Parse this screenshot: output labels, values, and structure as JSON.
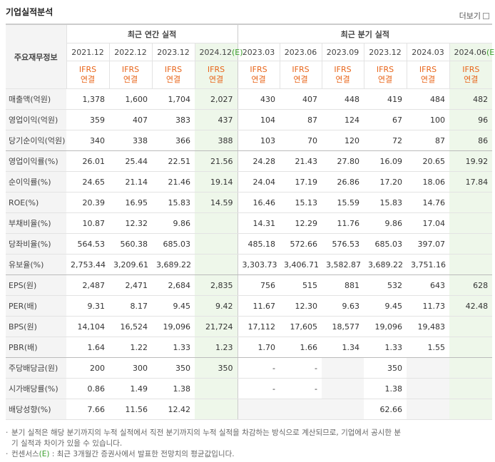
{
  "header": {
    "title": "기업실적분석",
    "more": "더보기"
  },
  "table": {
    "corner": "주요재무정보",
    "annual_group": "최근 연간 실적",
    "quarter_group": "최근 분기 실적",
    "estimate_mark": "(E)",
    "periods": [
      {
        "date": "2021.12",
        "estimate": false,
        "standard": "IFRS",
        "scope": "연결"
      },
      {
        "date": "2022.12",
        "estimate": false,
        "standard": "IFRS",
        "scope": "연결"
      },
      {
        "date": "2023.12",
        "estimate": false,
        "standard": "IFRS",
        "scope": "연결"
      },
      {
        "date": "2024.12",
        "estimate": true,
        "standard": "IFRS",
        "scope": "연결"
      },
      {
        "date": "2023.03",
        "estimate": false,
        "standard": "IFRS",
        "scope": "연결"
      },
      {
        "date": "2023.06",
        "estimate": false,
        "standard": "IFRS",
        "scope": "연결"
      },
      {
        "date": "2023.09",
        "estimate": false,
        "standard": "IFRS",
        "scope": "연결"
      },
      {
        "date": "2023.12",
        "estimate": false,
        "standard": "IFRS",
        "scope": "연결"
      },
      {
        "date": "2024.03",
        "estimate": false,
        "standard": "IFRS",
        "scope": "연결"
      },
      {
        "date": "2024.06",
        "estimate": true,
        "standard": "IFRS",
        "scope": "연결"
      }
    ],
    "rows": [
      {
        "label": "매출액(억원)",
        "values": [
          "1,378",
          "1,600",
          "1,704",
          "2,027",
          "430",
          "407",
          "448",
          "419",
          "484",
          "482"
        ]
      },
      {
        "label": "영업이익(억원)",
        "values": [
          "359",
          "407",
          "383",
          "437",
          "104",
          "87",
          "124",
          "67",
          "100",
          "96"
        ]
      },
      {
        "label": "당기순이익(억원)",
        "values": [
          "340",
          "338",
          "366",
          "388",
          "103",
          "70",
          "120",
          "72",
          "87",
          "86"
        ]
      },
      {
        "label": "영업이익률(%)",
        "values": [
          "26.01",
          "25.44",
          "22.51",
          "21.56",
          "24.28",
          "21.43",
          "27.80",
          "16.09",
          "20.65",
          "19.92"
        ]
      },
      {
        "label": "순이익률(%)",
        "values": [
          "24.65",
          "21.14",
          "21.46",
          "19.14",
          "24.04",
          "17.19",
          "26.86",
          "17.20",
          "18.06",
          "17.84"
        ]
      },
      {
        "label": "ROE(%)",
        "values": [
          "20.39",
          "16.95",
          "15.83",
          "14.59",
          "16.46",
          "15.13",
          "15.59",
          "15.83",
          "14.76",
          null
        ]
      },
      {
        "label": "부채비율(%)",
        "values": [
          "10.87",
          "12.32",
          "9.86",
          null,
          "14.31",
          "12.29",
          "11.76",
          "9.86",
          "17.04",
          null
        ]
      },
      {
        "label": "당좌비율(%)",
        "values": [
          "564.53",
          "560.38",
          "685.03",
          null,
          "485.18",
          "572.66",
          "576.53",
          "685.03",
          "397.07",
          null
        ]
      },
      {
        "label": "유보율(%)",
        "values": [
          "2,753.44",
          "3,209.61",
          "3,689.22",
          null,
          "3,303.73",
          "3,406.71",
          "3,582.87",
          "3,689.22",
          "3,751.16",
          null
        ]
      },
      {
        "label": "EPS(원)",
        "values": [
          "2,487",
          "2,471",
          "2,684",
          "2,835",
          "756",
          "515",
          "881",
          "532",
          "643",
          "628"
        ]
      },
      {
        "label": "PER(배)",
        "values": [
          "9.31",
          "8.17",
          "9.45",
          "9.42",
          "11.67",
          "12.30",
          "9.63",
          "9.45",
          "11.73",
          "42.48"
        ]
      },
      {
        "label": "BPS(원)",
        "values": [
          "14,104",
          "16,524",
          "19,096",
          "21,724",
          "17,112",
          "17,605",
          "18,577",
          "19,096",
          "19,483",
          null
        ]
      },
      {
        "label": "PBR(배)",
        "values": [
          "1.64",
          "1.22",
          "1.33",
          "1.23",
          "1.70",
          "1.66",
          "1.34",
          "1.33",
          "1.55",
          null
        ]
      },
      {
        "label": "주당배당금(원)",
        "values": [
          "200",
          "300",
          "350",
          "350",
          "-",
          "-",
          null,
          "350",
          null,
          null
        ]
      },
      {
        "label": "시가배당률(%)",
        "values": [
          "0.86",
          "1.49",
          "1.38",
          null,
          "-",
          "-",
          null,
          "1.38",
          null,
          null
        ]
      },
      {
        "label": "배당성향(%)",
        "values": [
          "7.66",
          "11.56",
          "12.42",
          null,
          null,
          null,
          null,
          "62.66",
          null,
          null
        ]
      }
    ]
  },
  "notes": [
    {
      "text": "분기 실적은 해당 분기까지의 누적 실적에서 직전 분기까지의 누적 실적을 차감하는 방식으로 계산되므로, 기업에서 공시한 분기 실적과 차이가 있을 수 있습니다."
    },
    {
      "label": "컨센서스",
      "mark": "(E)",
      "text": ": 최근 3개월간 증권사에서 발표한 전망치의 평균값입니다."
    }
  ]
}
